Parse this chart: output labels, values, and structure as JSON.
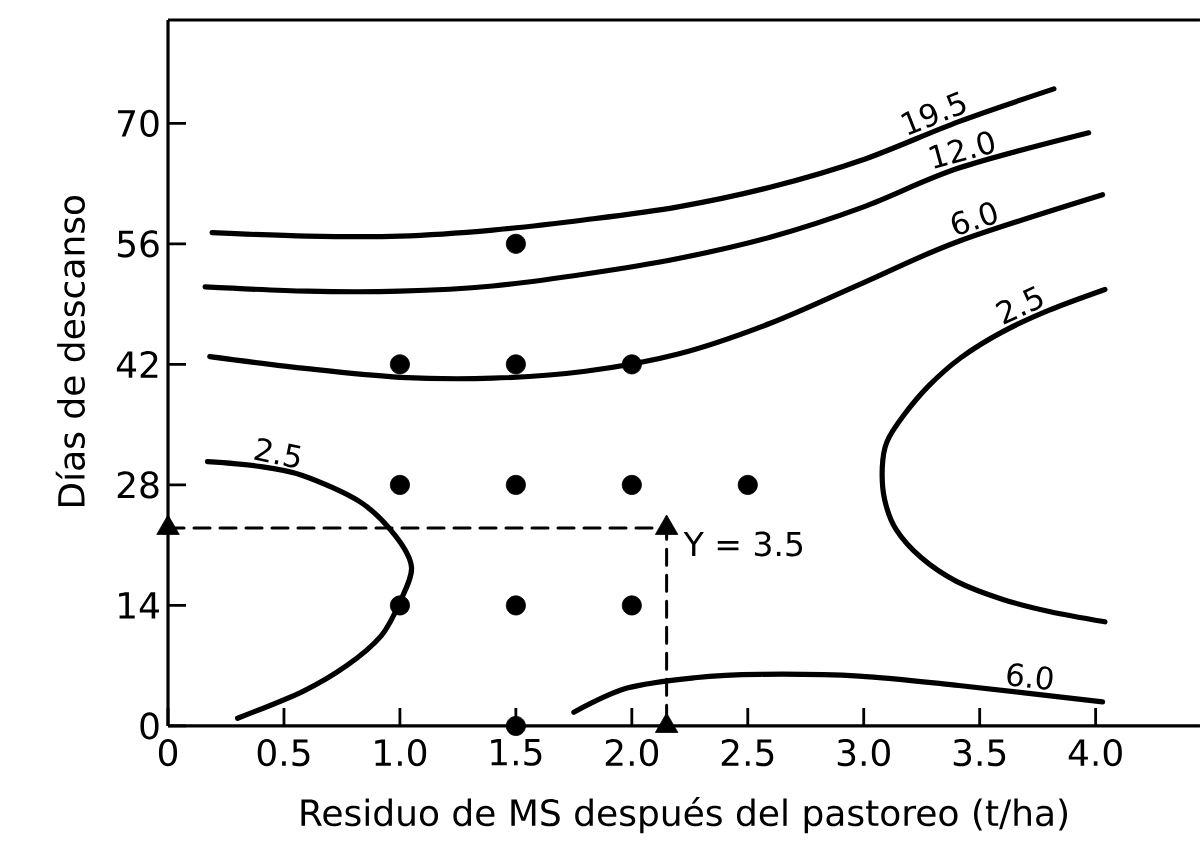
{
  "chart_data": {
    "type": "line",
    "xlabel": "Residuo de MS después del pastoreo (t/ha)",
    "ylabel": "Días de descanso",
    "xlim": [
      0,
      4.45
    ],
    "ylim": [
      0,
      82
    ],
    "xticks": [
      0,
      0.5,
      {
        "value": 1,
        "label": "1.0"
      },
      1.5,
      {
        "value": 2,
        "label": "2.0"
      },
      2.5,
      {
        "value": 3,
        "label": "3.0"
      },
      3.5,
      {
        "value": 4,
        "label": "4.0"
      }
    ],
    "yticks": [
      0,
      14,
      28,
      42,
      56,
      70
    ],
    "series": [
      {
        "name": "19.5",
        "color": "#000000",
        "x": [
          0.19,
          0.6,
          1.0,
          1.4,
          1.8,
          2.2,
          2.6,
          3.0,
          3.41,
          3.82
        ],
        "values": [
          57.3,
          56.9,
          56.9,
          57.6,
          58.8,
          60.3,
          62.6,
          65.8,
          70.2,
          74.0
        ]
      },
      {
        "name": "12.0",
        "color": "#000000",
        "x": [
          0.16,
          0.6,
          1.0,
          1.4,
          1.8,
          2.2,
          2.6,
          3.0,
          3.41,
          3.97
        ],
        "values": [
          51.0,
          50.5,
          50.5,
          51.1,
          52.5,
          54.3,
          56.8,
          60.3,
          64.8,
          68.9
        ]
      },
      {
        "name": "6.0",
        "color": "#000000",
        "x": [
          0.18,
          0.6,
          1.0,
          1.4,
          1.8,
          2.2,
          2.6,
          3.0,
          3.41,
          4.03
        ],
        "values": [
          42.9,
          41.5,
          40.5,
          40.4,
          41.2,
          43.2,
          46.8,
          51.5,
          56.3,
          61.7
        ]
      },
      {
        "name": "2.5",
        "color": "#000000",
        "x": [
          4.04,
          3.8,
          3.6,
          3.4,
          3.25,
          3.14,
          3.09,
          3.08,
          3.1,
          3.17,
          3.28,
          3.42,
          3.6,
          3.8,
          4.04
        ],
        "values": [
          12.1,
          13.3,
          14.7,
          16.8,
          19.5,
          22.8,
          26.3,
          30.0,
          33.0,
          36.0,
          39.5,
          42.8,
          45.8,
          48.3,
          50.7
        ]
      },
      {
        "name": "2.5",
        "color": "#000000",
        "x": [
          0.3,
          0.58,
          0.77,
          0.92,
          1.0,
          1.05,
          0.98,
          0.83,
          0.58,
          0.38,
          0.17
        ],
        "values": [
          0.9,
          4.0,
          7.0,
          10.5,
          14.4,
          18.4,
          22.1,
          26.0,
          29.1,
          30.2,
          30.7
        ]
      },
      {
        "name": "6.0",
        "color": "#000000",
        "x": [
          1.75,
          1.98,
          2.27,
          2.55,
          2.98,
          3.41,
          4.03
        ],
        "values": [
          1.6,
          4.4,
          5.6,
          6.0,
          5.8,
          4.7,
          2.8
        ]
      },
      {
        "type": "scatter",
        "marker": "circle",
        "color": "#000000",
        "x": [
          1.5,
          1.0,
          1.5,
          2.0,
          1.0,
          1.5,
          2.0,
          2.5,
          1.0,
          1.5,
          2.0,
          1.5
        ],
        "values": [
          56,
          42,
          42,
          42,
          28,
          28,
          28,
          28,
          14,
          14,
          14,
          0
        ]
      },
      {
        "line_style": "dashed",
        "color": "#000000",
        "x": [
          0,
          2.15,
          2.15
        ],
        "values": [
          23,
          23,
          0
        ]
      },
      {
        "type": "scatter",
        "marker": "triangle",
        "color": "#000000",
        "x": [
          0,
          2.15,
          2.15
        ],
        "values": [
          23,
          0,
          23
        ]
      }
    ],
    "annotations": [
      {
        "text": "Y = 3.5",
        "x": 2.15,
        "y": 23
      }
    ]
  }
}
